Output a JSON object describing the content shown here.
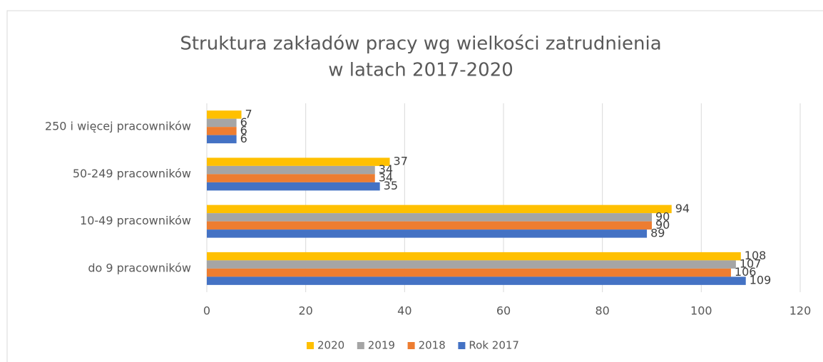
{
  "chart_data": {
    "type": "bar",
    "orientation": "horizontal",
    "title": [
      "Struktura zakładów pracy wg wielkości zatrudnienia",
      "w latach 2017-2020"
    ],
    "categories": [
      "250 i więcej pracowników",
      "50-249 pracowników",
      "10-49 pracowników",
      "do 9 pracowników"
    ],
    "series": [
      {
        "name": "2020",
        "color": "#FFC000",
        "values": [
          7,
          37,
          94,
          108
        ]
      },
      {
        "name": "2019",
        "color": "#A5A5A5",
        "values": [
          6,
          34,
          90,
          107
        ]
      },
      {
        "name": "2018",
        "color": "#ED7D31",
        "values": [
          6,
          34,
          90,
          106
        ]
      },
      {
        "name": "Rok 2017",
        "color": "#4472C4",
        "values": [
          6,
          35,
          89,
          109
        ]
      }
    ],
    "xlim": [
      0,
      120
    ],
    "xticks": [
      0,
      20,
      40,
      60,
      80,
      100,
      120
    ],
    "grid": true,
    "legend": "bottom"
  }
}
